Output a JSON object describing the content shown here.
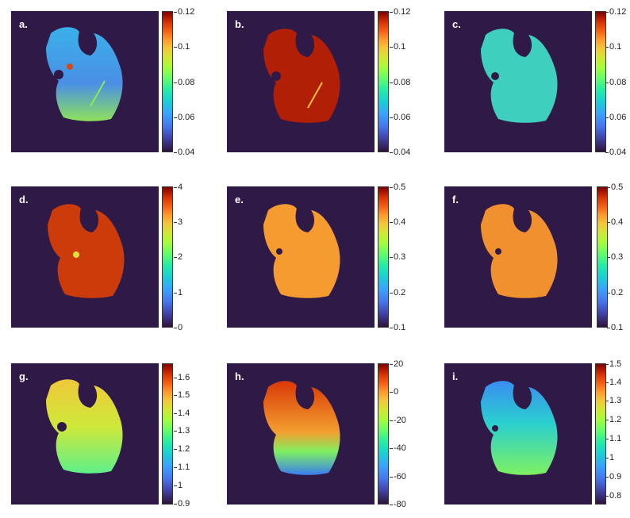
{
  "panels": [
    {
      "label": "a.",
      "ticks": [
        "0.12",
        "0.1",
        "0.08",
        "0.06",
        "0.04"
      ],
      "colors": {
        "fill": "#4aa3e8",
        "accent": "#6fe08a"
      }
    },
    {
      "label": "b.",
      "ticks": [
        "0.12",
        "0.1",
        "0.08",
        "0.06",
        "0.04"
      ],
      "colors": {
        "fill": "#b52a08",
        "accent": "#e0552a"
      }
    },
    {
      "label": "c.",
      "ticks": [
        "0.12",
        "0.1",
        "0.08",
        "0.06",
        "0.04"
      ],
      "colors": {
        "fill": "#3fd6b4",
        "accent": "#5bf07a"
      }
    },
    {
      "label": "d.",
      "ticks": [
        "4",
        "3",
        "2",
        "1",
        "0"
      ],
      "colors": {
        "fill": "#c93a0a",
        "accent": "#e55a20"
      }
    },
    {
      "label": "e.",
      "ticks": [
        "0.5",
        "0.4",
        "0.3",
        "0.2",
        "0.1"
      ],
      "colors": {
        "fill": "#f39b30",
        "accent": "#f7b33a"
      }
    },
    {
      "label": "f.",
      "ticks": [
        "0.5",
        "0.4",
        "0.3",
        "0.2",
        "0.1"
      ],
      "colors": {
        "fill": "#f08f2e",
        "accent": "#f5ad38"
      }
    },
    {
      "label": "g.",
      "ticks": [
        "1.6",
        "1.5",
        "1.4",
        "1.3",
        "1.2",
        "1.1",
        "1",
        "0.9"
      ],
      "colors": {
        "fill": "#d8e236",
        "accent": "#9ef04a"
      }
    },
    {
      "label": "h.",
      "ticks": [
        "20",
        "0",
        "-20",
        "-40",
        "-60",
        "-80"
      ],
      "colors": {
        "fill": "#d9410b",
        "accent": "#3f8ff5"
      }
    },
    {
      "label": "i.",
      "ticks": [
        "1.5",
        "1.4",
        "1.3",
        "1.2",
        "1.1",
        "1",
        "0.9",
        "0.8"
      ],
      "colors": {
        "fill": "#57e88a",
        "accent": "#3ea8f3"
      }
    }
  ]
}
